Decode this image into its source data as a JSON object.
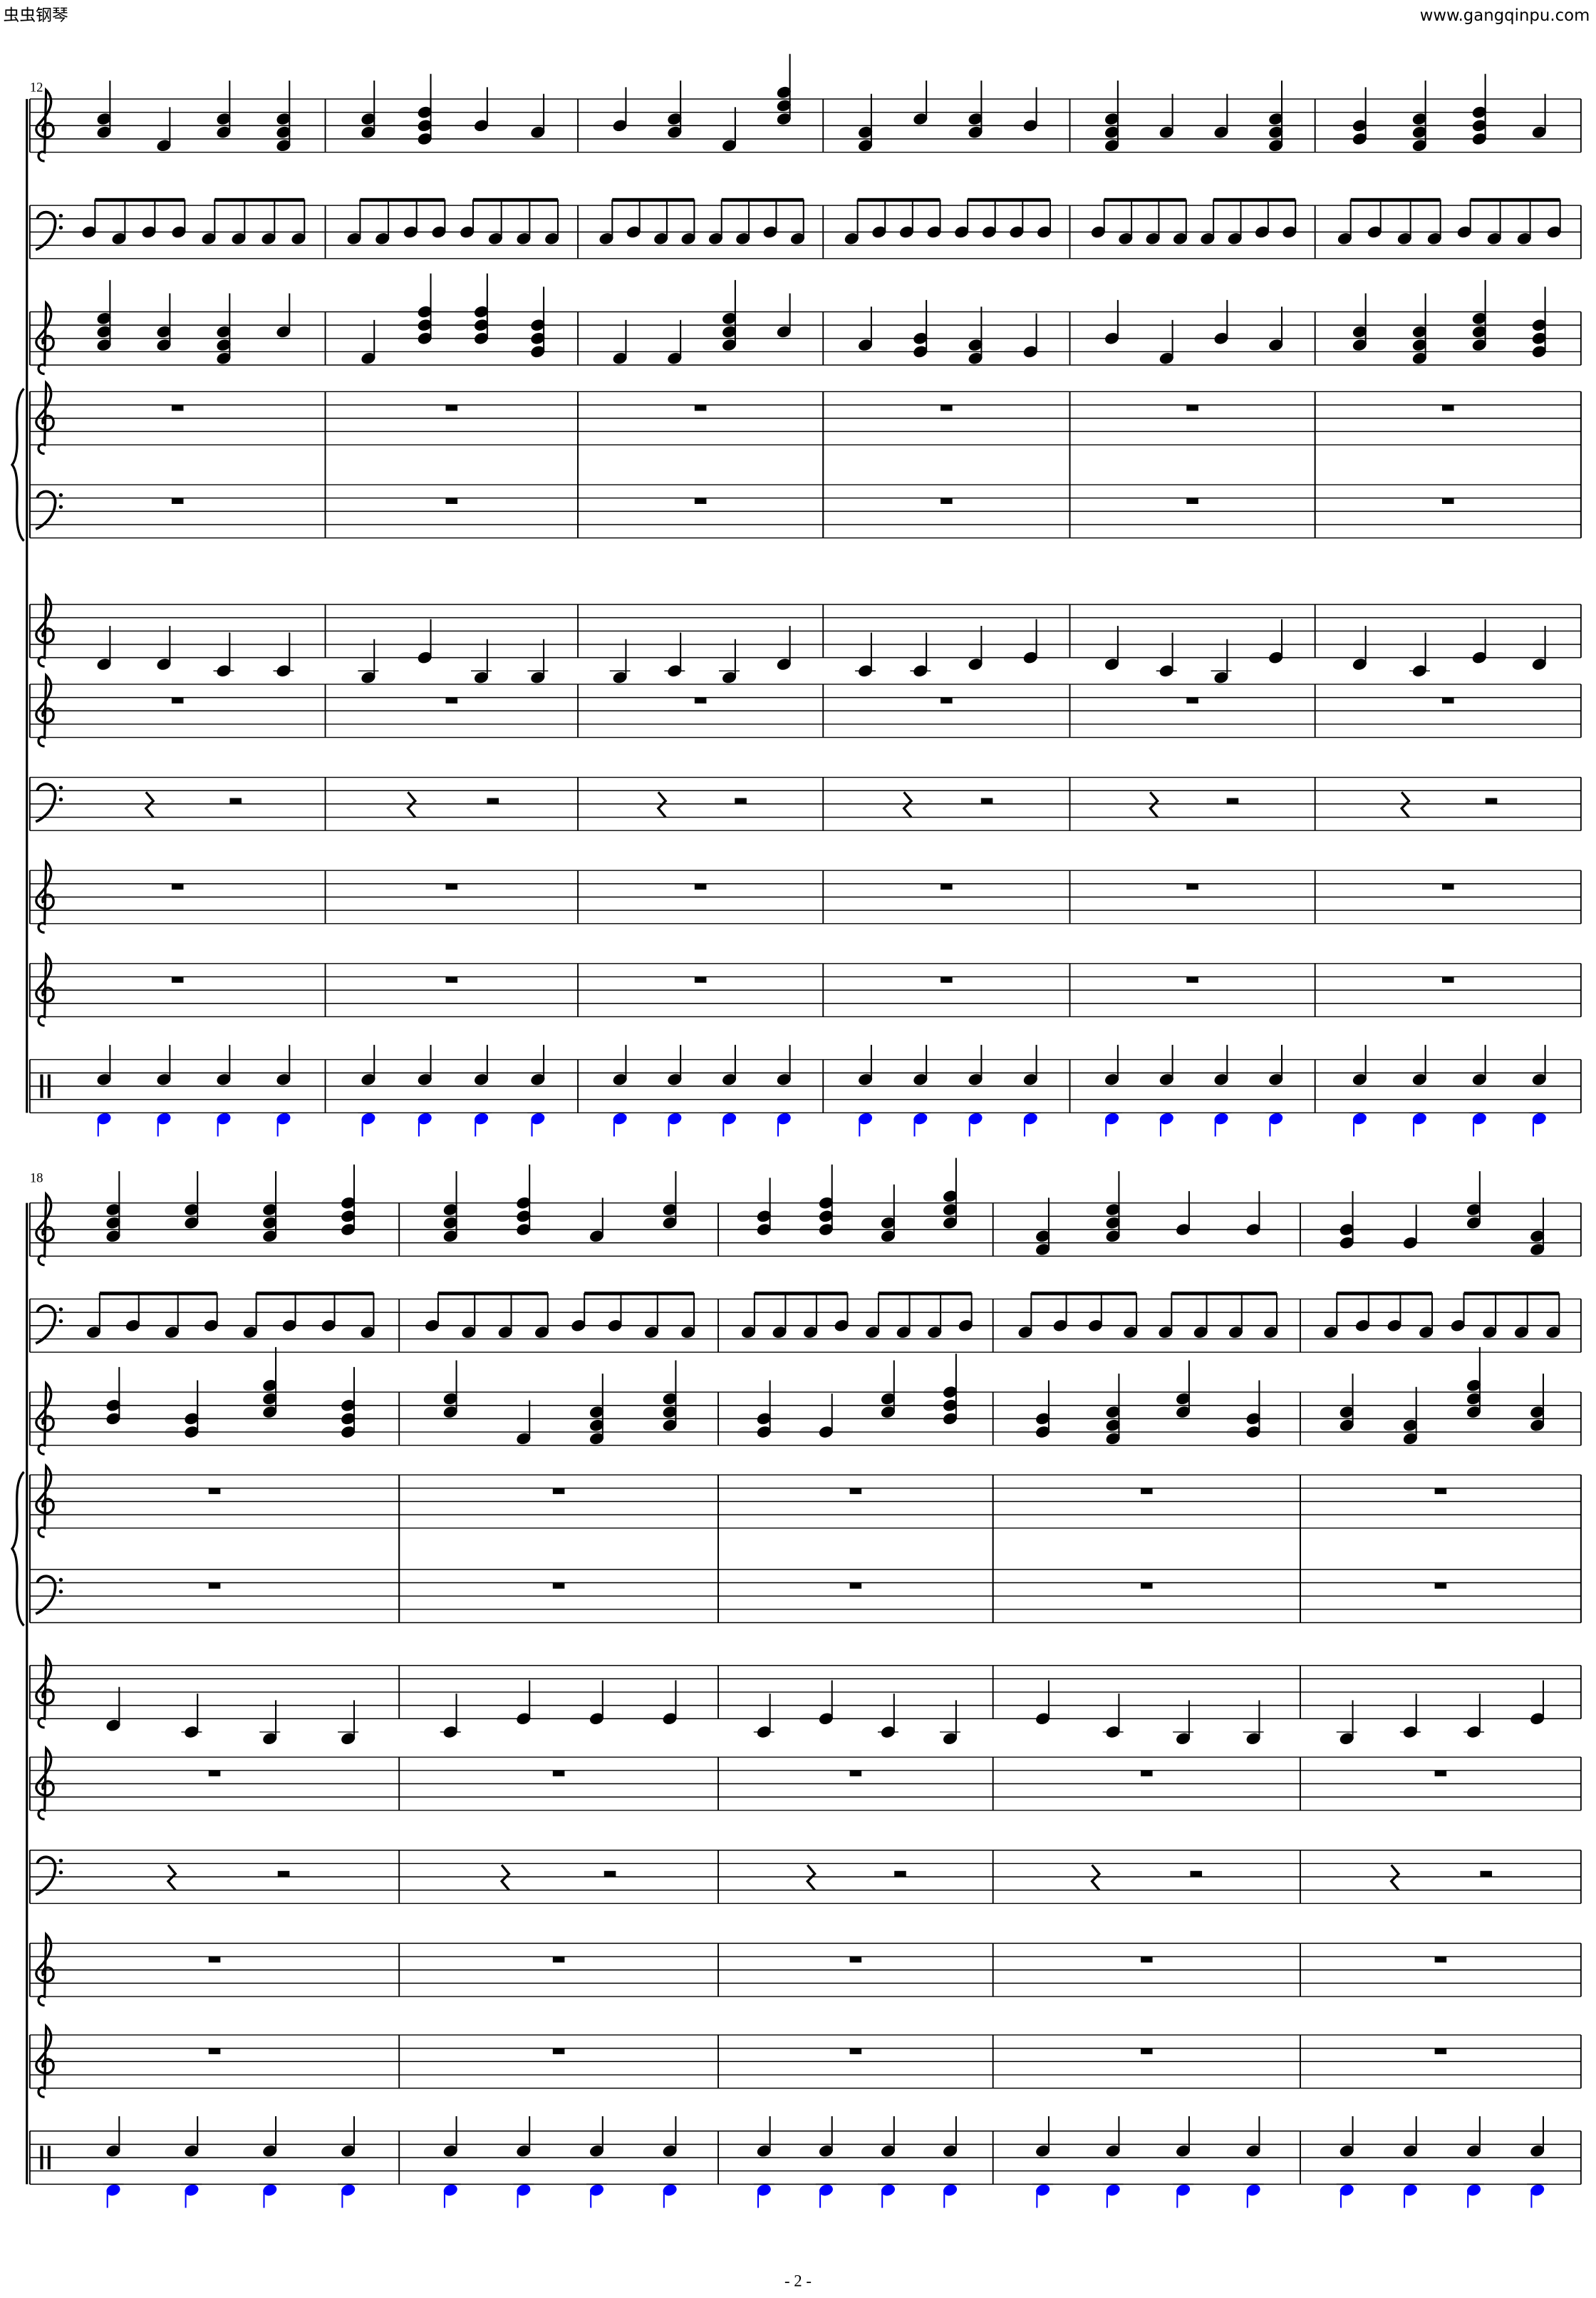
{
  "header": {
    "site_name": "虫虫钢琴",
    "url": "www.gangqinpu.com"
  },
  "systems": [
    {
      "measure_number": "12"
    },
    {
      "measure_number": "18"
    }
  ],
  "footer": {
    "page_number": "- 2 -"
  }
}
